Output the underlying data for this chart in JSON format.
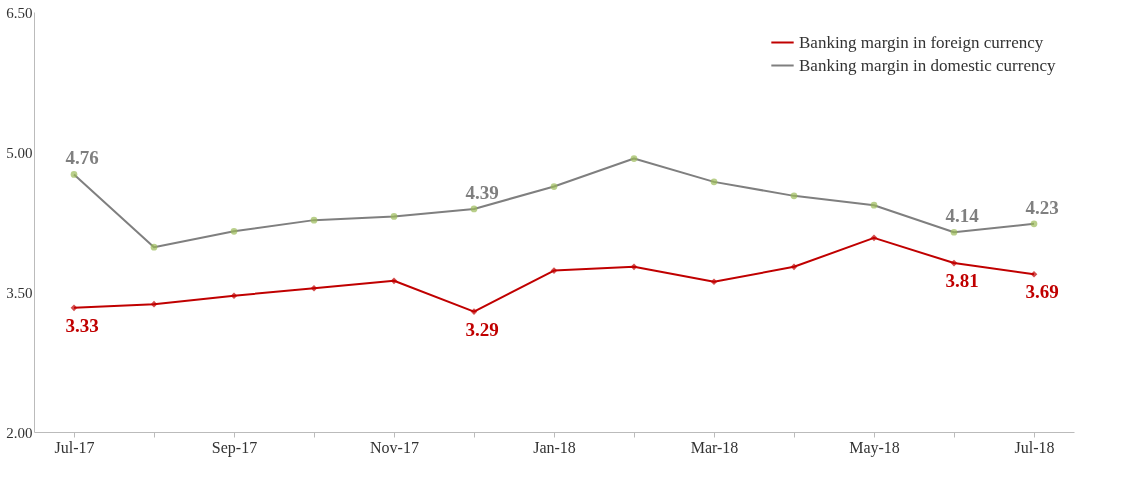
{
  "chart_data": {
    "type": "line",
    "categories": [
      "Jul-17",
      null,
      "Sep-17",
      null,
      "Nov-17",
      null,
      "Jan-18",
      null,
      "Mar-18",
      null,
      "May-18",
      null,
      "Jul-18"
    ],
    "series": [
      {
        "name": "Banking margin in foreign currency",
        "color": "#c00000",
        "marker": "diamond",
        "values": [
          3.33,
          3.37,
          3.46,
          3.54,
          3.62,
          3.29,
          3.73,
          3.77,
          3.61,
          3.77,
          4.08,
          3.81,
          3.69
        ],
        "value_labels": [
          "3.33",
          null,
          null,
          null,
          null,
          "3.29",
          null,
          null,
          null,
          null,
          null,
          "3.81",
          "3.69"
        ]
      },
      {
        "name": "Banking margin in domestic currency",
        "color": "#7f7f7f",
        "marker": "circle",
        "values": [
          4.76,
          3.98,
          4.15,
          4.27,
          4.31,
          4.39,
          4.63,
          4.93,
          4.68,
          4.53,
          4.43,
          4.14,
          4.23
        ],
        "value_labels": [
          "4.76",
          null,
          null,
          null,
          null,
          "4.39",
          null,
          null,
          null,
          null,
          null,
          "4.14",
          "4.23"
        ]
      }
    ],
    "ylim": [
      2,
      6.5
    ],
    "yticks": [
      {
        "value": 2,
        "label": "2.00"
      },
      {
        "value": 3.5,
        "label": "3.50"
      },
      {
        "value": 5,
        "label": "5.00"
      },
      {
        "value": 6.5,
        "label": "6.50"
      }
    ],
    "legend": "top right",
    "grid": false,
    "line_style": "solid"
  }
}
